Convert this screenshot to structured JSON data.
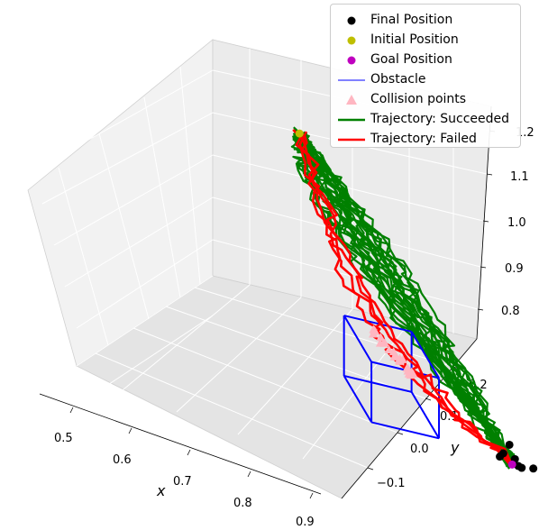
{
  "chart_data": {
    "type": "line",
    "projection": "3d",
    "xlabel": "x",
    "ylabel": "y",
    "zlabel": "",
    "xlim": [
      0.45,
      0.92
    ],
    "ylim": [
      -0.15,
      0.28
    ],
    "zlim": [
      0.75,
      1.22
    ],
    "x_ticks": [
      "0.5",
      "0.6",
      "0.7",
      "0.8",
      "0.9"
    ],
    "y_ticks": [
      "−0.1",
      "0.0",
      "0.1",
      "0.2"
    ],
    "z_ticks": [
      "0.8",
      "0.9",
      "1.0",
      "1.1",
      "1.2"
    ],
    "grid": true,
    "legend_placement": "top-right",
    "legend": [
      {
        "label": "Final Position",
        "marker": "dot",
        "color": "#000000"
      },
      {
        "label": "Initial Position",
        "marker": "dot",
        "color": "#bfbf00"
      },
      {
        "label": "Goal Position",
        "marker": "dot",
        "color": "#bf00bf"
      },
      {
        "label": "Obstacle",
        "marker": "line",
        "color": "#8080ff"
      },
      {
        "label": "Collision points",
        "marker": "triangle",
        "color": "#ffb6c1"
      },
      {
        "label": "Trajectory: Succeeded",
        "marker": "line",
        "color": "#008000"
      },
      {
        "label": "Trajectory: Failed",
        "marker": "line",
        "color": "#ff0000"
      }
    ],
    "initial_position": [
      0.52,
      0.17,
      1.13
    ],
    "goal_position": [
      0.87,
      -0.02,
      0.85
    ],
    "final_positions": [
      [
        0.86,
        -0.01,
        0.86
      ],
      [
        0.87,
        -0.03,
        0.85
      ],
      [
        0.88,
        -0.02,
        0.87
      ],
      [
        0.86,
        -0.04,
        0.84
      ],
      [
        0.87,
        0.0,
        0.86
      ],
      [
        0.88,
        -0.05,
        0.86
      ],
      [
        0.86,
        -0.02,
        0.88
      ]
    ],
    "obstacle_box": {
      "x": [
        0.66,
        0.76
      ],
      "y": [
        0.05,
        0.16
      ],
      "z": [
        0.78,
        0.9
      ]
    },
    "collision_points": [
      [
        0.68,
        0.12,
        0.9
      ],
      [
        0.69,
        0.11,
        0.89
      ],
      [
        0.7,
        0.1,
        0.88
      ],
      [
        0.71,
        0.09,
        0.88
      ],
      [
        0.72,
        0.08,
        0.87
      ],
      [
        0.73,
        0.08,
        0.87
      ]
    ],
    "series": [
      {
        "name": "Trajectory: Succeeded",
        "status": "succeeded",
        "count": 24
      },
      {
        "name": "Trajectory: Failed",
        "status": "failed",
        "count": 4
      }
    ]
  },
  "colors": {
    "succeeded": "#008000",
    "failed": "#ff0000",
    "collision": "#ffb6c1",
    "obstacle": "#0000ff",
    "final": "#000000",
    "initial": "#bfbf00",
    "goal": "#bf00bf"
  }
}
